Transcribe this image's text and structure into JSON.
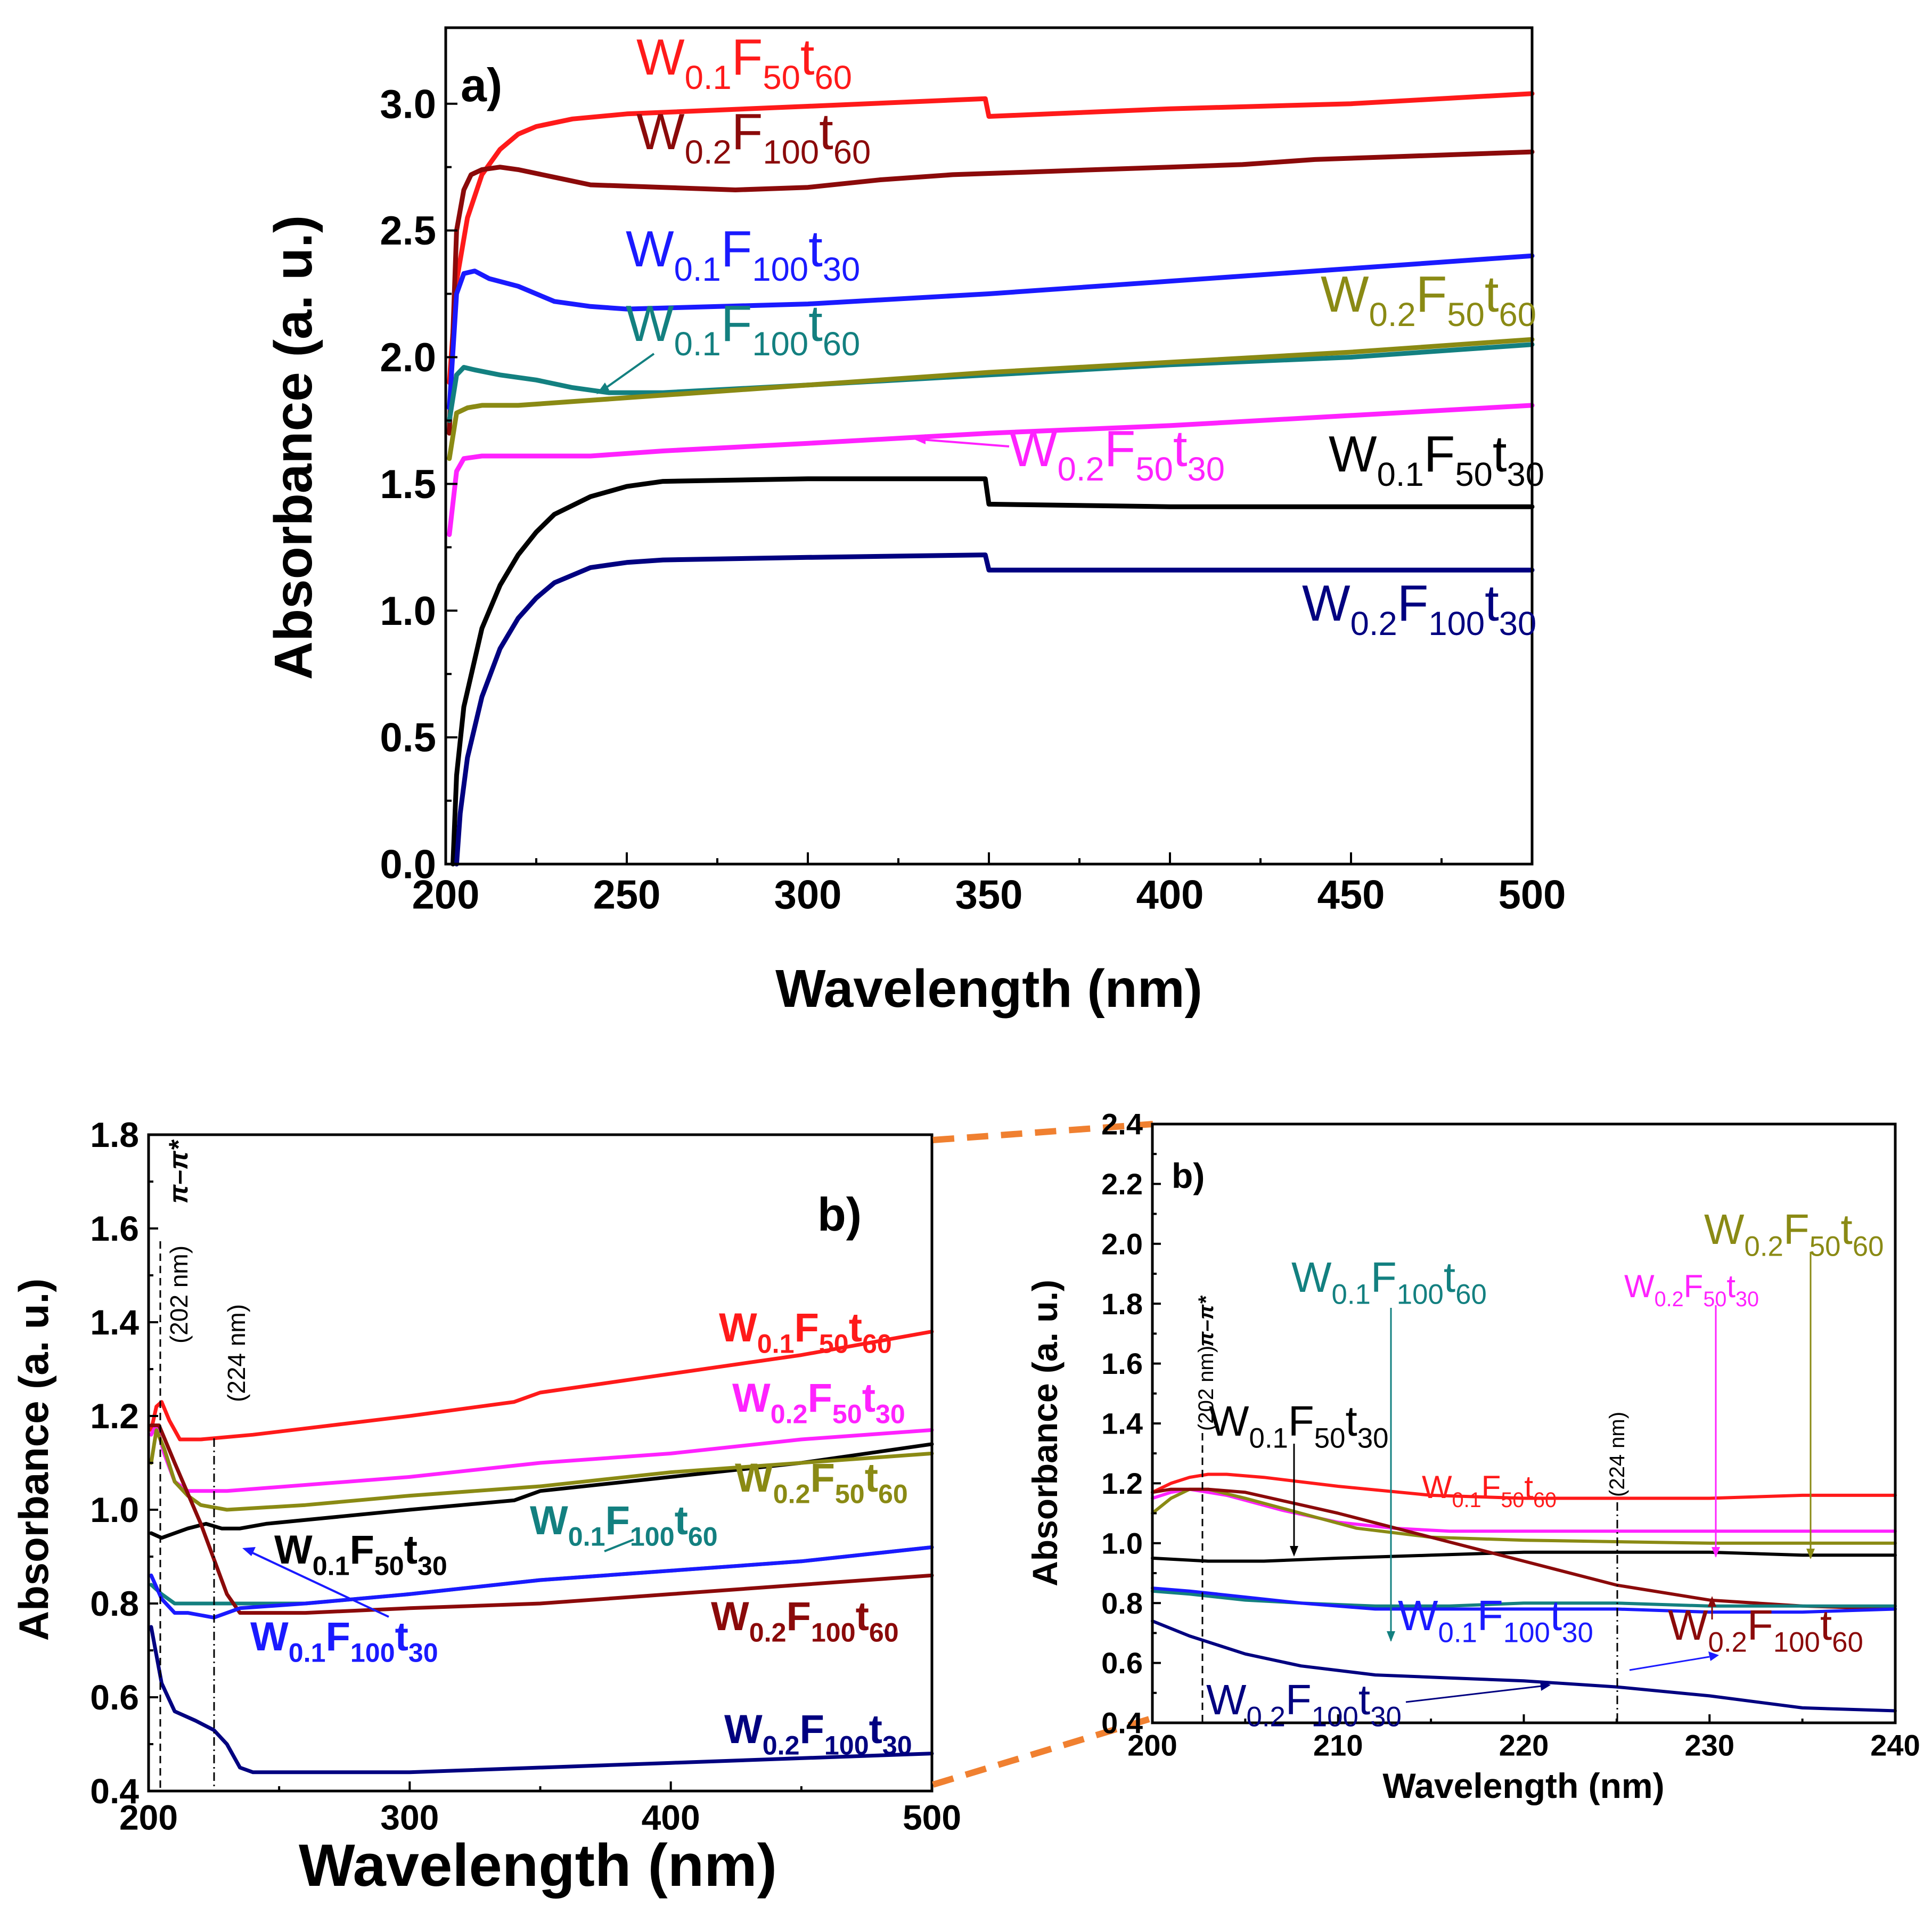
{
  "chart_data": [
    {
      "id": "a",
      "type": "line",
      "panel_label": "a)",
      "xlabel": "Wavelength (nm)",
      "ylabel": "Absorbance (a. u.)",
      "xlim": [
        200,
        500
      ],
      "ylim": [
        0,
        3.3
      ],
      "xticks": [
        "200",
        "250",
        "300",
        "350",
        "400",
        "450",
        "500"
      ],
      "yticks": [
        "0.0",
        "0.5",
        "1.0",
        "1.5",
        "2.0",
        "2.5",
        "3.0"
      ],
      "series": [
        {
          "name": "W0.1F50t60",
          "w": "W",
          "wsub": "0.1",
          "f": "F",
          "fsub": "50",
          "t": "t",
          "tsub": "60",
          "color": "#ff1a1a",
          "x": [
            201,
            203,
            206,
            210,
            215,
            220,
            225,
            235,
            250,
            300,
            349,
            350,
            400,
            450,
            500
          ],
          "y": [
            1.9,
            2.3,
            2.55,
            2.72,
            2.82,
            2.88,
            2.91,
            2.94,
            2.96,
            2.99,
            3.02,
            2.95,
            2.98,
            3.0,
            3.04
          ]
        },
        {
          "name": "W0.2F100t60",
          "w": "W",
          "wsub": "0.2",
          "f": "F",
          "fsub": "100",
          "t": "t",
          "tsub": "60",
          "color": "#8b0a0a",
          "x": [
            201,
            203,
            205,
            207,
            210,
            215,
            220,
            230,
            240,
            260,
            280,
            300,
            320,
            340,
            360,
            380,
            400,
            420,
            440,
            460,
            480,
            500
          ],
          "y": [
            1.7,
            2.5,
            2.66,
            2.72,
            2.74,
            2.75,
            2.74,
            2.71,
            2.68,
            2.67,
            2.66,
            2.67,
            2.7,
            2.72,
            2.73,
            2.74,
            2.75,
            2.76,
            2.78,
            2.79,
            2.8,
            2.81
          ]
        },
        {
          "name": "W0.1F100t30",
          "w": "W",
          "wsub": "0.1",
          "f": "F",
          "fsub": "100",
          "t": "t",
          "tsub": "30",
          "color": "#1a1aff",
          "x": [
            201,
            203,
            205,
            208,
            212,
            220,
            230,
            240,
            250,
            300,
            350,
            400,
            450,
            500
          ],
          "y": [
            1.8,
            2.25,
            2.33,
            2.34,
            2.31,
            2.28,
            2.22,
            2.2,
            2.19,
            2.21,
            2.25,
            2.3,
            2.35,
            2.4
          ]
        },
        {
          "name": "W0.1F100t60",
          "w": "W",
          "wsub": "0.1",
          "f": "F",
          "fsub": "100",
          "t": "t",
          "tsub": "60",
          "color": "#138080",
          "x": [
            201,
            203,
            205,
            208,
            215,
            225,
            235,
            245,
            260,
            300,
            350,
            400,
            450,
            500
          ],
          "y": [
            1.75,
            1.93,
            1.96,
            1.95,
            1.93,
            1.91,
            1.88,
            1.86,
            1.86,
            1.89,
            1.93,
            1.97,
            2.0,
            2.05
          ]
        },
        {
          "name": "W0.2F50t60",
          "w": "W",
          "wsub": "0.2",
          "f": "F",
          "fsub": "50",
          "t": "t",
          "tsub": "60",
          "color": "#8a8a14",
          "x": [
            201,
            203,
            206,
            210,
            220,
            240,
            260,
            300,
            350,
            400,
            450,
            500
          ],
          "y": [
            1.6,
            1.78,
            1.8,
            1.81,
            1.81,
            1.83,
            1.85,
            1.89,
            1.94,
            1.98,
            2.02,
            2.07
          ]
        },
        {
          "name": "W0.2F50t30",
          "w": "W",
          "wsub": "0.2",
          "f": "F",
          "fsub": "50",
          "t": "t",
          "tsub": "30",
          "color": "#ff22ff",
          "x": [
            201,
            203,
            205,
            210,
            220,
            240,
            260,
            300,
            350,
            400,
            450,
            500
          ],
          "y": [
            1.3,
            1.55,
            1.6,
            1.61,
            1.61,
            1.61,
            1.63,
            1.66,
            1.7,
            1.73,
            1.77,
            1.81
          ]
        },
        {
          "name": "W0.1F50t30",
          "w": "W",
          "wsub": "0.1",
          "f": "F",
          "fsub": "50",
          "t": "t",
          "tsub": "30",
          "color": "#000000",
          "x": [
            202,
            203,
            205,
            210,
            215,
            220,
            225,
            230,
            240,
            250,
            260,
            300,
            349,
            350,
            400,
            450,
            500
          ],
          "y": [
            0.0,
            0.35,
            0.62,
            0.93,
            1.1,
            1.22,
            1.31,
            1.38,
            1.45,
            1.49,
            1.51,
            1.52,
            1.52,
            1.42,
            1.41,
            1.41,
            1.41
          ]
        },
        {
          "name": "W0.2F100t30",
          "w": "W",
          "wsub": "0.2",
          "f": "F",
          "fsub": "100",
          "t": "t",
          "tsub": "30",
          "color": "#000080",
          "x": [
            203,
            204,
            206,
            210,
            215,
            220,
            225,
            230,
            240,
            250,
            260,
            300,
            349,
            350,
            400,
            450,
            500
          ],
          "y": [
            0.0,
            0.2,
            0.42,
            0.66,
            0.85,
            0.97,
            1.05,
            1.11,
            1.17,
            1.19,
            1.2,
            1.21,
            1.22,
            1.16,
            1.16,
            1.16,
            1.16
          ]
        }
      ]
    },
    {
      "id": "b1",
      "type": "line",
      "panel_label": "b)",
      "xlabel": "Wavelength (nm)",
      "ylabel": "Absorbance (a. u.)",
      "xlim": [
        200,
        500
      ],
      "ylim": [
        0.4,
        1.8
      ],
      "xticks": [
        "200",
        "300",
        "400",
        "500"
      ],
      "yticks": [
        "0.4",
        "0.6",
        "0.8",
        "1.0",
        "1.2",
        "1.4",
        "1.6",
        "1.8"
      ],
      "annotations": {
        "pi_label": "π–π*",
        "nm202": "(202 nm)",
        "nm224": "(224 nm)"
      },
      "series": [
        {
          "name": "W0.1F50t60",
          "color": "#ff1a1a",
          "x": [
            201,
            203,
            205,
            208,
            212,
            220,
            240,
            300,
            340,
            350,
            400,
            450,
            500
          ],
          "y": [
            1.17,
            1.22,
            1.23,
            1.19,
            1.15,
            1.15,
            1.16,
            1.2,
            1.23,
            1.25,
            1.29,
            1.33,
            1.38
          ]
        },
        {
          "name": "W0.2F50t30",
          "color": "#ff22ff",
          "x": [
            201,
            203,
            206,
            210,
            215,
            230,
            300,
            350,
            400,
            450,
            500
          ],
          "y": [
            1.16,
            1.18,
            1.12,
            1.06,
            1.04,
            1.04,
            1.07,
            1.1,
            1.12,
            1.15,
            1.17
          ]
        },
        {
          "name": "W0.1F50t30",
          "color": "#000000",
          "x": [
            201,
            205,
            210,
            215,
            222,
            228,
            235,
            245,
            300,
            340,
            350,
            400,
            450,
            500
          ],
          "y": [
            0.95,
            0.94,
            0.95,
            0.96,
            0.97,
            0.96,
            0.96,
            0.97,
            1.0,
            1.02,
            1.04,
            1.07,
            1.1,
            1.14
          ]
        },
        {
          "name": "W0.2F50t60",
          "color": "#8a8a14",
          "x": [
            201,
            203,
            206,
            210,
            215,
            220,
            230,
            260,
            300,
            350,
            400,
            450,
            500
          ],
          "y": [
            1.1,
            1.17,
            1.13,
            1.06,
            1.03,
            1.01,
            1.0,
            1.01,
            1.03,
            1.05,
            1.08,
            1.1,
            1.12
          ]
        },
        {
          "name": "W0.1F100t60",
          "color": "#138080",
          "x": [
            201,
            205,
            210,
            215,
            225,
            235,
            260,
            300,
            350,
            400,
            450,
            500
          ],
          "y": [
            0.84,
            0.82,
            0.8,
            0.8,
            0.8,
            0.8,
            0.8,
            0.82,
            0.85,
            0.87,
            0.89,
            0.92
          ]
        },
        {
          "name": "W0.2F100t60",
          "color": "#8b0a0a",
          "x": [
            201,
            204,
            210,
            220,
            230,
            235,
            240,
            260,
            300,
            350,
            400,
            450,
            500
          ],
          "y": [
            1.18,
            1.18,
            1.1,
            0.97,
            0.82,
            0.78,
            0.78,
            0.78,
            0.79,
            0.8,
            0.82,
            0.84,
            0.86
          ]
        },
        {
          "name": "W0.1F100t30",
          "color": "#1a1aff",
          "x": [
            201,
            205,
            210,
            215,
            225,
            235,
            260,
            300,
            350,
            400,
            450,
            500
          ],
          "y": [
            0.86,
            0.81,
            0.78,
            0.78,
            0.77,
            0.79,
            0.8,
            0.82,
            0.85,
            0.87,
            0.89,
            0.92
          ]
        },
        {
          "name": "W0.2F100t30",
          "color": "#000080",
          "x": [
            201,
            205,
            210,
            218,
            225,
            230,
            235,
            240,
            260,
            300,
            400,
            500
          ],
          "y": [
            0.75,
            0.63,
            0.57,
            0.55,
            0.53,
            0.5,
            0.45,
            0.44,
            0.44,
            0.44,
            0.46,
            0.48
          ]
        }
      ]
    },
    {
      "id": "b2",
      "type": "line",
      "panel_label": "b)",
      "xlabel": "Wavelength (nm)",
      "ylabel": "Absorbance (a. u.)",
      "xlim": [
        200,
        240
      ],
      "ylim": [
        0.4,
        2.4
      ],
      "xticks": [
        "200",
        "210",
        "220",
        "230",
        "240"
      ],
      "yticks": [
        "0.4",
        "0.6",
        "0.8",
        "1.0",
        "1.2",
        "1.4",
        "1.6",
        "1.8",
        "2.0",
        "2.2",
        "2.4"
      ],
      "annotations": {
        "pi_label": "π–π*",
        "nm202": "(202 nm)",
        "nm224": "(224 nm)"
      },
      "series": [
        {
          "name": "W0.1F50t60",
          "color": "#ff1a1a",
          "x": [
            200,
            201,
            202,
            203,
            204,
            206,
            210,
            215,
            220,
            225,
            230,
            235,
            240
          ],
          "y": [
            1.17,
            1.2,
            1.22,
            1.23,
            1.23,
            1.22,
            1.19,
            1.16,
            1.15,
            1.15,
            1.15,
            1.16,
            1.16
          ]
        },
        {
          "name": "W0.2F50t30",
          "color": "#ff22ff",
          "x": [
            200,
            201,
            202,
            204,
            207,
            210,
            213,
            216,
            220,
            230,
            240
          ],
          "y": [
            1.15,
            1.17,
            1.18,
            1.16,
            1.11,
            1.07,
            1.05,
            1.04,
            1.04,
            1.04,
            1.04
          ]
        },
        {
          "name": "W0.2F50t60",
          "color": "#8a8a14",
          "x": [
            200,
            201,
            202,
            203,
            205,
            208,
            211,
            215,
            220,
            230,
            240
          ],
          "y": [
            1.1,
            1.15,
            1.18,
            1.18,
            1.15,
            1.1,
            1.05,
            1.02,
            1.01,
            1.0,
            1.0
          ]
        },
        {
          "name": "W0.1F50t30",
          "color": "#000000",
          "x": [
            200,
            203,
            206,
            210,
            215,
            220,
            223,
            226,
            230,
            235,
            240
          ],
          "y": [
            0.95,
            0.94,
            0.94,
            0.95,
            0.96,
            0.97,
            0.97,
            0.97,
            0.97,
            0.96,
            0.96
          ]
        },
        {
          "name": "W0.2F100t60",
          "color": "#8b0a0a",
          "x": [
            200,
            201,
            202,
            203,
            205,
            210,
            215,
            220,
            225,
            230,
            235,
            240
          ],
          "y": [
            1.17,
            1.18,
            1.18,
            1.18,
            1.17,
            1.1,
            1.02,
            0.94,
            0.86,
            0.81,
            0.79,
            0.78
          ]
        },
        {
          "name": "W0.1F100t60",
          "color": "#138080",
          "x": [
            200,
            202,
            205,
            208,
            212,
            216,
            220,
            225,
            230,
            235,
            240
          ],
          "y": [
            0.84,
            0.83,
            0.81,
            0.8,
            0.79,
            0.79,
            0.8,
            0.8,
            0.79,
            0.79,
            0.79
          ]
        },
        {
          "name": "W0.1F100t30",
          "color": "#1a1aff",
          "x": [
            200,
            202,
            205,
            208,
            212,
            216,
            220,
            225,
            230,
            235,
            240
          ],
          "y": [
            0.85,
            0.84,
            0.82,
            0.8,
            0.78,
            0.78,
            0.78,
            0.78,
            0.77,
            0.77,
            0.78
          ]
        },
        {
          "name": "W0.2F100t30",
          "color": "#000080",
          "x": [
            200,
            202,
            205,
            208,
            212,
            216,
            220,
            225,
            230,
            235,
            240
          ],
          "y": [
            0.74,
            0.69,
            0.63,
            0.59,
            0.56,
            0.55,
            0.54,
            0.52,
            0.49,
            0.45,
            0.44
          ]
        }
      ]
    }
  ]
}
